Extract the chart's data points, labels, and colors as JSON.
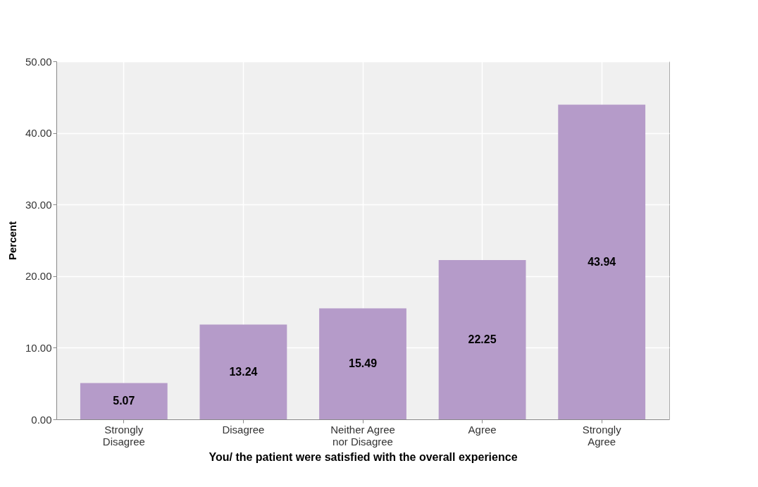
{
  "chart_data": {
    "type": "bar",
    "xlabel": "You/ the patient were satisfied with the overall experience",
    "ylabel": "Percent",
    "categories": [
      "Strongly\nDisagree",
      "Disagree",
      "Neither Agree\nnor Disagree",
      "Agree",
      "Strongly\nAgree"
    ],
    "values": [
      5.07,
      13.24,
      15.49,
      22.25,
      43.94
    ],
    "color": "#b59bc9",
    "ylim": [
      0,
      50
    ],
    "yticks": [
      {
        "value": 0,
        "label": "0.00"
      },
      {
        "value": 10,
        "label": "10.00"
      },
      {
        "value": 20,
        "label": "20.00"
      },
      {
        "value": 30,
        "label": "30.00"
      },
      {
        "value": 40,
        "label": "40.00"
      },
      {
        "value": 50,
        "label": "50.00"
      }
    ],
    "grid": true,
    "data_labels": true
  }
}
